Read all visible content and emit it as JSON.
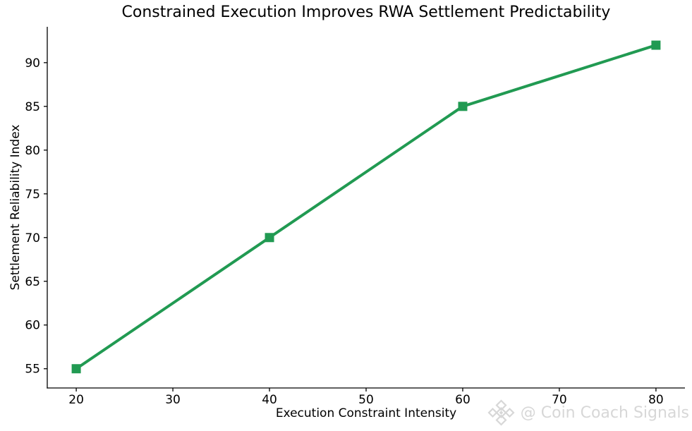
{
  "chart_data": {
    "type": "line",
    "title": "Constrained Execution Improves RWA Settlement Predictability",
    "xlabel": "Execution Constraint Intensity",
    "ylabel": "Settlement Reliability Index",
    "x": [
      20,
      40,
      60,
      80
    ],
    "y": [
      55,
      70,
      85,
      92
    ],
    "xticks": [
      20,
      30,
      40,
      50,
      60,
      70,
      80
    ],
    "yticks": [
      55,
      60,
      65,
      70,
      75,
      80,
      85,
      90
    ],
    "xlim": [
      17,
      83
    ],
    "ylim": [
      52.8,
      94.1
    ],
    "grid": false,
    "legend": "none",
    "line_color": "#219a52",
    "line_width": 4,
    "marker": "square",
    "marker_size": 13,
    "spine_color": "#000000",
    "tick_color": "#000000",
    "tick_label_size": 17,
    "background_color": "#ffffff",
    "text_color": "#000000"
  },
  "watermark": {
    "text": "@ Coin Coach Signals",
    "icon": "diamond-logo-icon",
    "color": "#d7d7d7"
  }
}
